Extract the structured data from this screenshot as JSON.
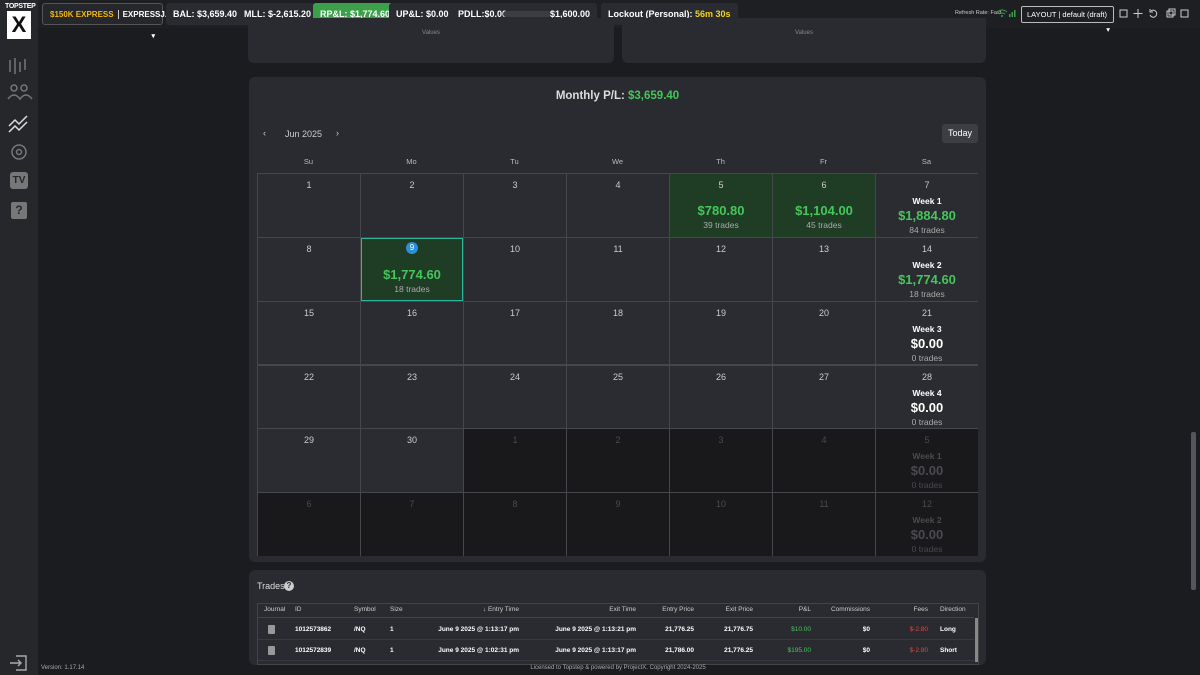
{
  "top_bar": {
    "account_tier": "$150K EXPRESS",
    "account_name": "EXPRESSJ...",
    "balance": "BAL: $3,659.40",
    "mll": "MLL: $-2,615.20",
    "rpl": "RP&L: $1,774.60",
    "upl": "UP&L: $0.00",
    "pdll": "PDLL:$0.00",
    "pdll_limit": "$1,600.00",
    "lockout_label": "Lockout (Personal):",
    "lockout_time": "56m 30s",
    "refresh_rate": "Refresh Rate: Fast",
    "layout": "LAYOUT | default (draft)"
  },
  "sidebar": {
    "logo_top": "TOPSTEP",
    "logo_mark": "X",
    "tv_icon": "TV",
    "help_icon": "?"
  },
  "top_panels": [
    {
      "axis_label": "Values"
    },
    {
      "axis_label": "Values"
    }
  ],
  "calendar": {
    "title_label": "Monthly P/L:",
    "title_value": "$3,659.40",
    "month": "Jun 2025",
    "today_button": "Today",
    "weekdays": [
      "Su",
      "Mo",
      "Tu",
      "We",
      "Th",
      "Fr",
      "Sa"
    ],
    "weeks": [
      {
        "days": [
          {
            "day": "1",
            "in_month": true
          },
          {
            "day": "2",
            "in_month": true
          },
          {
            "day": "3",
            "in_month": true
          },
          {
            "day": "4",
            "in_month": true
          },
          {
            "day": "5",
            "in_month": true,
            "pnl": "$780.80",
            "trades": "39 trades"
          },
          {
            "day": "6",
            "in_month": true,
            "pnl": "$1,104.00",
            "trades": "45 trades"
          },
          {
            "day": "7",
            "in_month": true,
            "week": "Week 1",
            "pnl": "$1,884.80",
            "trades": "84 trades"
          }
        ]
      },
      {
        "days": [
          {
            "day": "8",
            "in_month": true
          },
          {
            "day": "9",
            "in_month": true,
            "today": true,
            "pnl": "$1,774.60",
            "trades": "18 trades"
          },
          {
            "day": "10",
            "in_month": true
          },
          {
            "day": "11",
            "in_month": true
          },
          {
            "day": "12",
            "in_month": true
          },
          {
            "day": "13",
            "in_month": true
          },
          {
            "day": "14",
            "in_month": true,
            "week": "Week 2",
            "pnl": "$1,774.60",
            "trades": "18 trades"
          }
        ]
      },
      {
        "days": [
          {
            "day": "15",
            "in_month": true
          },
          {
            "day": "16",
            "in_month": true
          },
          {
            "day": "17",
            "in_month": true
          },
          {
            "day": "18",
            "in_month": true
          },
          {
            "day": "19",
            "in_month": true
          },
          {
            "day": "20",
            "in_month": true
          },
          {
            "day": "21",
            "in_month": true,
            "week": "Week 3",
            "pnl": "$0.00",
            "trades": "0 trades"
          }
        ]
      },
      {
        "days": [
          {
            "day": "22",
            "in_month": true
          },
          {
            "day": "23",
            "in_month": true
          },
          {
            "day": "24",
            "in_month": true
          },
          {
            "day": "25",
            "in_month": true
          },
          {
            "day": "26",
            "in_month": true
          },
          {
            "day": "27",
            "in_month": true
          },
          {
            "day": "28",
            "in_month": true,
            "week": "Week 4",
            "pnl": "$0.00",
            "trades": "0 trades"
          }
        ]
      },
      {
        "days": [
          {
            "day": "29",
            "in_month": true
          },
          {
            "day": "30",
            "in_month": true
          },
          {
            "day": "1",
            "in_month": false
          },
          {
            "day": "2",
            "in_month": false
          },
          {
            "day": "3",
            "in_month": false
          },
          {
            "day": "4",
            "in_month": false
          },
          {
            "day": "5",
            "in_month": false,
            "week": "Week 1",
            "pnl": "$0.00",
            "trades": "0 trades"
          }
        ]
      },
      {
        "days": [
          {
            "day": "6",
            "in_month": false
          },
          {
            "day": "7",
            "in_month": false
          },
          {
            "day": "8",
            "in_month": false
          },
          {
            "day": "9",
            "in_month": false
          },
          {
            "day": "10",
            "in_month": false
          },
          {
            "day": "11",
            "in_month": false
          },
          {
            "day": "12",
            "in_month": false,
            "week": "Week 2",
            "pnl": "$0.00",
            "trades": "0 trades"
          }
        ]
      }
    ]
  },
  "trades": {
    "title": "Trades",
    "help": "?",
    "columns": [
      "Journal",
      "ID",
      "Symbol",
      "Size",
      "Entry Time",
      "Exit Time",
      "Entry Price",
      "Exit Price",
      "P&L",
      "Commissions",
      "Fees",
      "Direction"
    ],
    "rows": [
      [
        "1012573862",
        "/NQ",
        "1",
        "June 9 2025 @ 1:13:17 pm",
        "June 9 2025 @ 1:13:21 pm",
        "21,776.25",
        "21,776.75",
        "$10.00",
        "$0",
        "$-2.80",
        "Long"
      ],
      [
        "1012572839",
        "/NQ",
        "1",
        "June 9 2025 @ 1:02:31 pm",
        "June 9 2025 @ 1:13:17 pm",
        "21,786.00",
        "21,776.25",
        "$195.00",
        "$0",
        "$-2.80",
        "Short"
      ]
    ]
  },
  "footer": {
    "version": "Version: 1.17.14",
    "license": "Licensed to Topstep & powered by ProjectX. Copyright 2024-2025"
  }
}
